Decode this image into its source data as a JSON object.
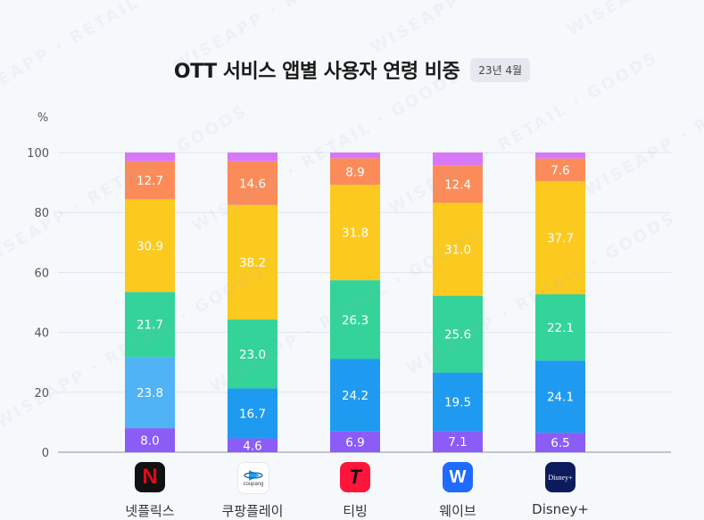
{
  "title": "OTT 서비스 앱별 사용자 연령 비중",
  "date_badge": "23년 4월",
  "watermark_text": "WISEAPP · RETAIL · GOODS",
  "colors": {
    "age1": "#8b5cf6",
    "age2": "#1e9bf0",
    "age3": "#34d399",
    "age4": "#fcca1f",
    "age5": "#fb8c5a",
    "age6": "#d877f7",
    "age2_netflix": "#4fb3f6"
  },
  "apps": [
    {
      "name": "넷플릭스",
      "icon": "netflix-icon"
    },
    {
      "name": "쿠팡플레이",
      "icon": "coupang-play-icon"
    },
    {
      "name": "티빙",
      "icon": "tving-icon"
    },
    {
      "name": "웨이브",
      "icon": "wavve-icon"
    },
    {
      "name": "Disney+",
      "icon": "disney-plus-icon"
    }
  ],
  "logo_text": {
    "netflix": "N",
    "coupang": "coupang",
    "tving": "T",
    "wavve": "W",
    "disney": "Disney+"
  },
  "chart_data": {
    "type": "bar",
    "stacked": true,
    "categories": [
      "넷플릭스",
      "쿠팡플레이",
      "티빙",
      "웨이브",
      "Disney+"
    ],
    "ylabel": "%",
    "ylim": [
      0,
      100
    ],
    "yticks": [
      0,
      20,
      40,
      60,
      80,
      100
    ],
    "grid": true,
    "series": [
      {
        "values": [
          8.0,
          4.6,
          6.9,
          7.1,
          6.5
        ],
        "labels": [
          "8.0",
          "4.6",
          "6.9",
          "7.1",
          "6.5"
        ]
      },
      {
        "values": [
          23.8,
          16.7,
          24.2,
          19.5,
          24.1
        ],
        "labels": [
          "23.8",
          "16.7",
          "24.2",
          "19.5",
          "24.1"
        ]
      },
      {
        "values": [
          21.7,
          23.0,
          26.3,
          25.6,
          22.1
        ],
        "labels": [
          "21.7",
          "23.0",
          "26.3",
          "25.6",
          "22.1"
        ]
      },
      {
        "values": [
          30.9,
          38.2,
          31.8,
          31.0,
          37.7
        ],
        "labels": [
          "30.9",
          "38.2",
          "31.8",
          "31.0",
          "37.7"
        ]
      },
      {
        "values": [
          12.7,
          14.6,
          8.9,
          12.4,
          7.6
        ],
        "labels": [
          "12.7",
          "14.6",
          "8.9",
          "12.4",
          "7.6"
        ]
      },
      {
        "values": [
          2.9,
          2.9,
          1.9,
          4.4,
          2.0
        ],
        "labels": [
          "",
          "",
          "",
          "",
          ""
        ]
      }
    ]
  }
}
